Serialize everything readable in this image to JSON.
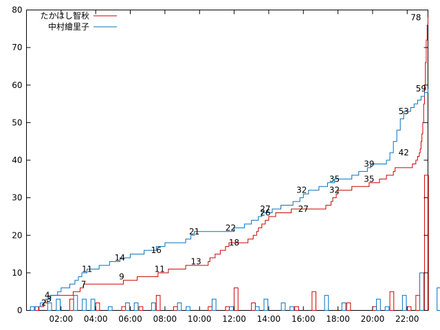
{
  "chart_data": {
    "type": "line",
    "title": "",
    "xlabel": "",
    "ylabel": "",
    "xlim_hours": [
      0.0,
      23.2
    ],
    "ylim": [
      0,
      80
    ],
    "grid": false,
    "legend_position": "top-left",
    "x_tick_labels": [
      "02:00",
      "04:00",
      "06:00",
      "08:00",
      "10:00",
      "12:00",
      "14:00",
      "16:00",
      "18:00",
      "20:00",
      "22:00"
    ],
    "x_tick_hours": [
      2,
      4,
      6,
      8,
      10,
      12,
      14,
      16,
      18,
      20,
      22
    ],
    "y_tick_values": [
      0,
      10,
      20,
      30,
      40,
      50,
      60,
      70,
      80
    ],
    "series": [
      {
        "name": "たかはし智秋",
        "color": "#cc0000",
        "cumulative_points": [
          [
            0.0,
            0
          ],
          [
            0.7,
            1
          ],
          [
            1.0,
            2
          ],
          [
            1.2,
            3
          ],
          [
            1.4,
            4
          ],
          [
            2.2,
            4
          ],
          [
            2.7,
            5
          ],
          [
            3.1,
            6
          ],
          [
            3.3,
            7
          ],
          [
            4.1,
            7
          ],
          [
            5.6,
            8
          ],
          [
            6.4,
            9
          ],
          [
            7.0,
            9
          ],
          [
            7.6,
            10
          ],
          [
            8.2,
            11
          ],
          [
            8.8,
            11
          ],
          [
            9.2,
            12
          ],
          [
            10.1,
            12
          ],
          [
            10.5,
            13
          ],
          [
            10.6,
            14
          ],
          [
            10.9,
            15
          ],
          [
            11.2,
            16
          ],
          [
            11.5,
            17
          ],
          [
            11.7,
            18
          ],
          [
            12.8,
            19
          ],
          [
            13.1,
            20
          ],
          [
            13.3,
            21
          ],
          [
            13.4,
            22
          ],
          [
            13.6,
            23
          ],
          [
            13.8,
            24
          ],
          [
            14.0,
            25
          ],
          [
            14.4,
            26
          ],
          [
            15.0,
            26
          ],
          [
            15.3,
            27
          ],
          [
            16.5,
            27
          ],
          [
            17.3,
            28
          ],
          [
            17.6,
            29
          ],
          [
            17.7,
            30
          ],
          [
            17.9,
            31
          ],
          [
            18.0,
            32
          ],
          [
            18.4,
            32
          ],
          [
            18.8,
            33
          ],
          [
            19.0,
            33
          ],
          [
            19.8,
            34
          ],
          [
            20.4,
            35
          ],
          [
            20.8,
            36
          ],
          [
            21.2,
            37
          ],
          [
            21.3,
            38
          ],
          [
            22.0,
            38
          ],
          [
            22.3,
            39
          ],
          [
            22.5,
            40
          ],
          [
            22.6,
            41
          ],
          [
            22.7,
            42
          ],
          [
            22.75,
            43
          ],
          [
            22.8,
            45
          ],
          [
            22.85,
            47
          ],
          [
            22.9,
            50
          ],
          [
            22.95,
            55
          ],
          [
            23.0,
            60
          ],
          [
            23.05,
            66
          ],
          [
            23.1,
            72
          ],
          [
            23.15,
            76
          ],
          [
            23.2,
            78
          ]
        ],
        "point_labels": [
          {
            "hour": 1.3,
            "value": 3,
            "text": "3"
          },
          {
            "hour": 3.3,
            "value": 7,
            "text": "7"
          },
          {
            "hour": 5.5,
            "value": 9,
            "text": "9"
          },
          {
            "hour": 7.7,
            "value": 11,
            "text": "11"
          },
          {
            "hour": 9.8,
            "value": 13,
            "text": "13"
          },
          {
            "hour": 12.0,
            "value": 18,
            "text": "18"
          },
          {
            "hour": 13.8,
            "value": 26,
            "text": "26"
          },
          {
            "hour": 16.0,
            "value": 27,
            "text": "27"
          },
          {
            "hour": 17.8,
            "value": 32,
            "text": "32"
          },
          {
            "hour": 19.8,
            "value": 35,
            "text": "35"
          },
          {
            "hour": 21.8,
            "value": 42,
            "text": "42"
          },
          {
            "hour": 22.5,
            "value": 78,
            "text": "78"
          }
        ],
        "hourly_counts": [
          0,
          1,
          0,
          0,
          0,
          3,
          0,
          0,
          2,
          0,
          0,
          1,
          0,
          1,
          0,
          4,
          0,
          1,
          0,
          0,
          0,
          1,
          0,
          1,
          6,
          0,
          2,
          0,
          0,
          0,
          0,
          1,
          0,
          5,
          0,
          0,
          0,
          2,
          0,
          0,
          1,
          0,
          5,
          0,
          1,
          4,
          36,
          0
        ]
      },
      {
        "name": "中村繪里子",
        "color": "#0070c0",
        "cumulative_points": [
          [
            0.0,
            0
          ],
          [
            0.5,
            1
          ],
          [
            0.8,
            2
          ],
          [
            1.1,
            3
          ],
          [
            1.4,
            4
          ],
          [
            1.8,
            5
          ],
          [
            2.0,
            6
          ],
          [
            2.5,
            7
          ],
          [
            2.8,
            8
          ],
          [
            3.0,
            9
          ],
          [
            3.2,
            10
          ],
          [
            3.5,
            11
          ],
          [
            4.2,
            12
          ],
          [
            4.8,
            13
          ],
          [
            5.4,
            14
          ],
          [
            6.0,
            15
          ],
          [
            6.8,
            16
          ],
          [
            7.5,
            17
          ],
          [
            8.0,
            18
          ],
          [
            9.2,
            19
          ],
          [
            9.5,
            20
          ],
          [
            9.7,
            21
          ],
          [
            11.5,
            21
          ],
          [
            12.0,
            22
          ],
          [
            12.6,
            23
          ],
          [
            13.0,
            24
          ],
          [
            13.4,
            25
          ],
          [
            13.6,
            26
          ],
          [
            14.2,
            27
          ],
          [
            14.7,
            28
          ],
          [
            15.4,
            29
          ],
          [
            15.8,
            30
          ],
          [
            16.0,
            31
          ],
          [
            16.3,
            32
          ],
          [
            16.9,
            33
          ],
          [
            17.4,
            34
          ],
          [
            17.8,
            35
          ],
          [
            18.2,
            35
          ],
          [
            18.8,
            36
          ],
          [
            19.2,
            37
          ],
          [
            19.7,
            38
          ],
          [
            19.9,
            39
          ],
          [
            20.2,
            39
          ],
          [
            20.8,
            40
          ],
          [
            21.0,
            42
          ],
          [
            21.2,
            45
          ],
          [
            21.4,
            48
          ],
          [
            21.6,
            51
          ],
          [
            21.8,
            53
          ],
          [
            22.2,
            54
          ],
          [
            22.4,
            55
          ],
          [
            22.6,
            56
          ],
          [
            22.8,
            57
          ],
          [
            23.0,
            58
          ],
          [
            23.2,
            59
          ]
        ],
        "point_labels": [
          {
            "hour": 1.0,
            "value": 2,
            "text": "2"
          },
          {
            "hour": 1.2,
            "value": 4,
            "text": "4"
          },
          {
            "hour": 3.5,
            "value": 11,
            "text": "11"
          },
          {
            "hour": 5.4,
            "value": 14,
            "text": "14"
          },
          {
            "hour": 7.5,
            "value": 16,
            "text": "16"
          },
          {
            "hour": 9.7,
            "value": 21,
            "text": "21"
          },
          {
            "hour": 11.8,
            "value": 22,
            "text": "22"
          },
          {
            "hour": 13.8,
            "value": 27,
            "text": "27"
          },
          {
            "hour": 15.9,
            "value": 32,
            "text": "32"
          },
          {
            "hour": 17.8,
            "value": 35,
            "text": "35"
          },
          {
            "hour": 19.8,
            "value": 39,
            "text": "39"
          },
          {
            "hour": 21.8,
            "value": 53,
            "text": "53"
          },
          {
            "hour": 22.8,
            "value": 59,
            "text": "59"
          }
        ],
        "hourly_counts": [
          1,
          0,
          2,
          3,
          0,
          4,
          3,
          3,
          0,
          1,
          0,
          2,
          2,
          0,
          2,
          0,
          0,
          2,
          1,
          0,
          0,
          3,
          0,
          1,
          0,
          0,
          1,
          3,
          0,
          2,
          1,
          0,
          0,
          0,
          4,
          0,
          2,
          0,
          0,
          0,
          3,
          1,
          0,
          4,
          0,
          10,
          0,
          6
        ]
      }
    ]
  }
}
